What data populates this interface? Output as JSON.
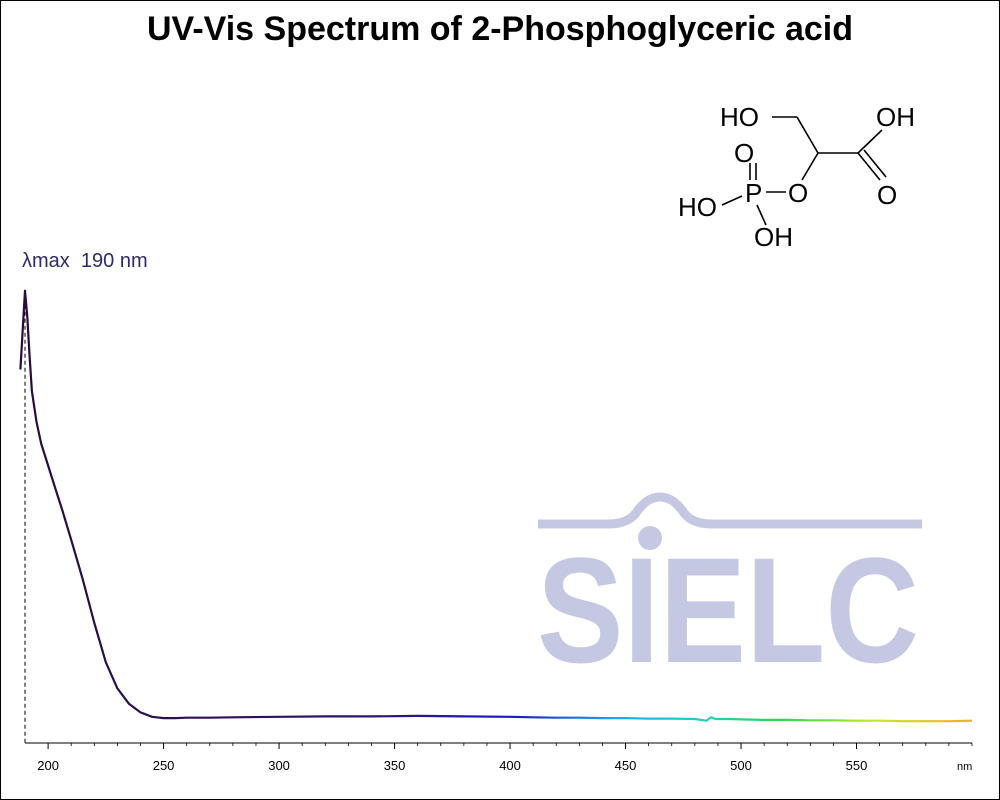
{
  "chart_data": {
    "type": "line",
    "title": "UV-Vis Spectrum of 2-Phosphoglyceric acid",
    "x_unit": "nm",
    "xlim": [
      190,
      600
    ],
    "x_ticks": [
      200,
      250,
      300,
      350,
      400,
      450,
      500,
      550
    ],
    "ylim": [
      0,
      1.0
    ],
    "grid": false,
    "legend": "none",
    "annotation": {
      "text": "λmax  190 nm",
      "x": 190
    },
    "series": [
      {
        "x": [
          188,
          189,
          190,
          191,
          192,
          193,
          195,
          197,
          200,
          203,
          206,
          210,
          215,
          220,
          225,
          230,
          235,
          240,
          245,
          250,
          255,
          260,
          270,
          280,
          300,
          320,
          340,
          360,
          380,
          400,
          410,
          420,
          430,
          440,
          450,
          460,
          470,
          480,
          485,
          487,
          489,
          495,
          500,
          510,
          520,
          530,
          540,
          550,
          560,
          570,
          580,
          590,
          600
        ],
        "values": [
          0.8,
          0.89,
          0.98,
          0.92,
          0.83,
          0.75,
          0.68,
          0.63,
          0.58,
          0.53,
          0.48,
          0.41,
          0.32,
          0.22,
          0.13,
          0.07,
          0.035,
          0.015,
          0.005,
          0.002,
          0.002,
          0.003,
          0.003,
          0.004,
          0.005,
          0.006,
          0.006,
          0.007,
          0.006,
          0.005,
          0.004,
          0.003,
          0.003,
          0.002,
          0.002,
          0.001,
          0.001,
          0.0,
          -0.004,
          0.004,
          0.0,
          0.0,
          -0.001,
          -0.002,
          -0.002,
          -0.003,
          -0.003,
          -0.004,
          -0.004,
          -0.005,
          -0.005,
          -0.005,
          -0.004
        ]
      }
    ]
  },
  "structure": {
    "ho_top": "HO",
    "oh_acid": "OH",
    "o_carbonyl": "O",
    "o_phosphoryl": "O",
    "phosphorus": "P",
    "o_ester": "O",
    "ho_left": "HO",
    "oh_bottom": "OH"
  },
  "watermark": {
    "text": "SIELC",
    "color": "#c5c8e2"
  }
}
